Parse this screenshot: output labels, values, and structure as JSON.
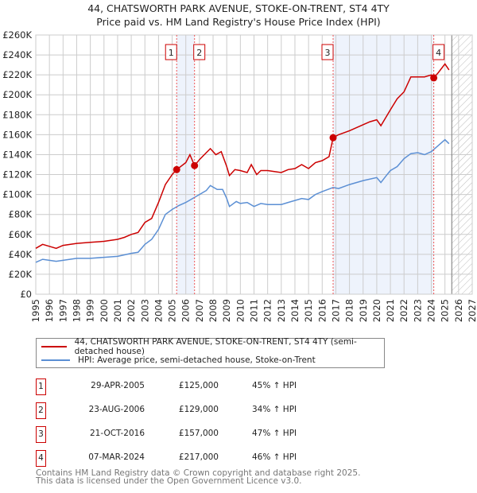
{
  "title": "44, CHATSWORTH PARK AVENUE, STOKE-ON-TRENT, ST4 4TY",
  "subtitle": "Price paid vs. HM Land Registry's House Price Index (HPI)",
  "colors": {
    "property": "#cc0000",
    "hpi": "#5b8fd4",
    "shade": "#eef3fc"
  },
  "chart_data": {
    "type": "line",
    "xlim": [
      1995,
      2027
    ],
    "ylim": [
      0,
      260000
    ],
    "y_ticks": [
      0,
      20000,
      40000,
      60000,
      80000,
      100000,
      120000,
      140000,
      160000,
      180000,
      200000,
      220000,
      240000,
      260000
    ],
    "y_tick_labels": [
      "£0",
      "£20K",
      "£40K",
      "£60K",
      "£80K",
      "£100K",
      "£120K",
      "£140K",
      "£160K",
      "£180K",
      "£200K",
      "£220K",
      "£240K",
      "£260K"
    ],
    "x_ticks": [
      "1995",
      "1996",
      "1997",
      "1998",
      "1999",
      "2000",
      "2001",
      "2002",
      "2003",
      "2004",
      "2005",
      "2006",
      "2007",
      "2008",
      "2009",
      "2010",
      "2011",
      "2012",
      "2013",
      "2014",
      "2015",
      "2016",
      "2017",
      "2018",
      "2019",
      "2020",
      "2021",
      "2022",
      "2023",
      "2024",
      "2025",
      "2026",
      "2027"
    ],
    "grid": true,
    "forecast_hatch_from": 2025.5,
    "shaded_periods": [
      [
        2005.33,
        2006.64
      ],
      [
        2016.8,
        2024.18
      ]
    ],
    "series": [
      {
        "name": "44, CHATSWORTH PARK AVENUE, STOKE-ON-TRENT, ST4 4TY (semi-detached house)",
        "x": [
          1995,
          1995.5,
          1996,
          1996.5,
          1997,
          1998,
          1999,
          2000,
          2001,
          2001.5,
          2002,
          2002.5,
          2003,
          2003.5,
          2004,
          2004.5,
          2005,
          2005.33,
          2006,
          2006.3,
          2006.64,
          2007,
          2007.5,
          2007.8,
          2008.2,
          2008.6,
          2009,
          2009.2,
          2009.6,
          2010,
          2010.5,
          2010.8,
          2011.2,
          2011.5,
          2012,
          2012.5,
          2013,
          2013.5,
          2014,
          2014.5,
          2015,
          2015.5,
          2016,
          2016.5,
          2016.8,
          2017.2,
          2018,
          2019,
          2019.5,
          2020,
          2020.3,
          2020.7,
          2021,
          2021.5,
          2022,
          2022.5,
          2023,
          2023.5,
          2024,
          2024.18,
          2024.5,
          2025,
          2025.3
        ],
        "values": [
          46000,
          50000,
          48000,
          46000,
          49000,
          51000,
          52000,
          53000,
          55000,
          57000,
          60000,
          62000,
          72000,
          76000,
          92000,
          110000,
          120000,
          125000,
          132000,
          140000,
          129000,
          135000,
          142000,
          146000,
          140000,
          143000,
          128000,
          119000,
          125000,
          124000,
          122000,
          130000,
          120000,
          124000,
          124000,
          123000,
          122000,
          125000,
          126000,
          130000,
          126000,
          132000,
          134000,
          138000,
          157000,
          160000,
          164000,
          170000,
          173000,
          175000,
          169000,
          178000,
          185000,
          196000,
          203000,
          218000,
          218000,
          218000,
          220000,
          217000,
          222000,
          231000,
          225000
        ]
      },
      {
        "name": "HPI: Average price, semi-detached house, Stoke-on-Trent",
        "x": [
          1995,
          1995.5,
          1996,
          1996.5,
          1997,
          1998,
          1999,
          2000,
          2001,
          2002,
          2002.5,
          2003,
          2003.5,
          2004,
          2004.5,
          2005,
          2005.5,
          2006,
          2006.5,
          2007,
          2007.5,
          2007.8,
          2008.3,
          2008.7,
          2009,
          2009.2,
          2009.7,
          2010,
          2010.5,
          2011,
          2011.5,
          2012,
          2013,
          2013.5,
          2014,
          2014.5,
          2015,
          2015.5,
          2016,
          2016.8,
          2017.2,
          2018,
          2019,
          2020,
          2020.3,
          2020.7,
          2021,
          2021.5,
          2022,
          2022.5,
          2023,
          2023.5,
          2024,
          2024.5,
          2025,
          2025.3
        ],
        "values": [
          32000,
          35000,
          34000,
          33000,
          34000,
          36000,
          36000,
          37000,
          38000,
          41000,
          42000,
          50000,
          55000,
          65000,
          80000,
          85000,
          89000,
          92000,
          96000,
          100000,
          104000,
          109000,
          105000,
          105000,
          96000,
          88000,
          93000,
          91000,
          92000,
          88000,
          91000,
          90000,
          90000,
          92000,
          94000,
          96000,
          95000,
          100000,
          103000,
          107000,
          106000,
          110000,
          114000,
          117000,
          112000,
          119000,
          124000,
          128000,
          136000,
          141000,
          142000,
          140000,
          143000,
          149000,
          155000,
          151000
        ]
      }
    ],
    "sales": [
      {
        "num": "1",
        "x": 2005.33,
        "value": 125000
      },
      {
        "num": "2",
        "x": 2006.64,
        "value": 129000
      },
      {
        "num": "3",
        "x": 2016.8,
        "value": 157000
      },
      {
        "num": "4",
        "x": 2024.18,
        "value": 217000
      }
    ]
  },
  "legend": {
    "property": "44, CHATSWORTH PARK AVENUE, STOKE-ON-TRENT, ST4 4TY (semi-detached house)",
    "hpi": "HPI: Average price, semi-detached house, Stoke-on-Trent"
  },
  "transactions": [
    {
      "num": "1",
      "date": "29-APR-2005",
      "price": "£125,000",
      "hpi": "45% ↑ HPI"
    },
    {
      "num": "2",
      "date": "23-AUG-2006",
      "price": "£129,000",
      "hpi": "34% ↑ HPI"
    },
    {
      "num": "3",
      "date": "21-OCT-2016",
      "price": "£157,000",
      "hpi": "47% ↑ HPI"
    },
    {
      "num": "4",
      "date": "07-MAR-2024",
      "price": "£217,000",
      "hpi": "46% ↑ HPI"
    }
  ],
  "footer": {
    "line1": "Contains HM Land Registry data © Crown copyright and database right 2025.",
    "line2": "This data is licensed under the Open Government Licence v3.0."
  }
}
